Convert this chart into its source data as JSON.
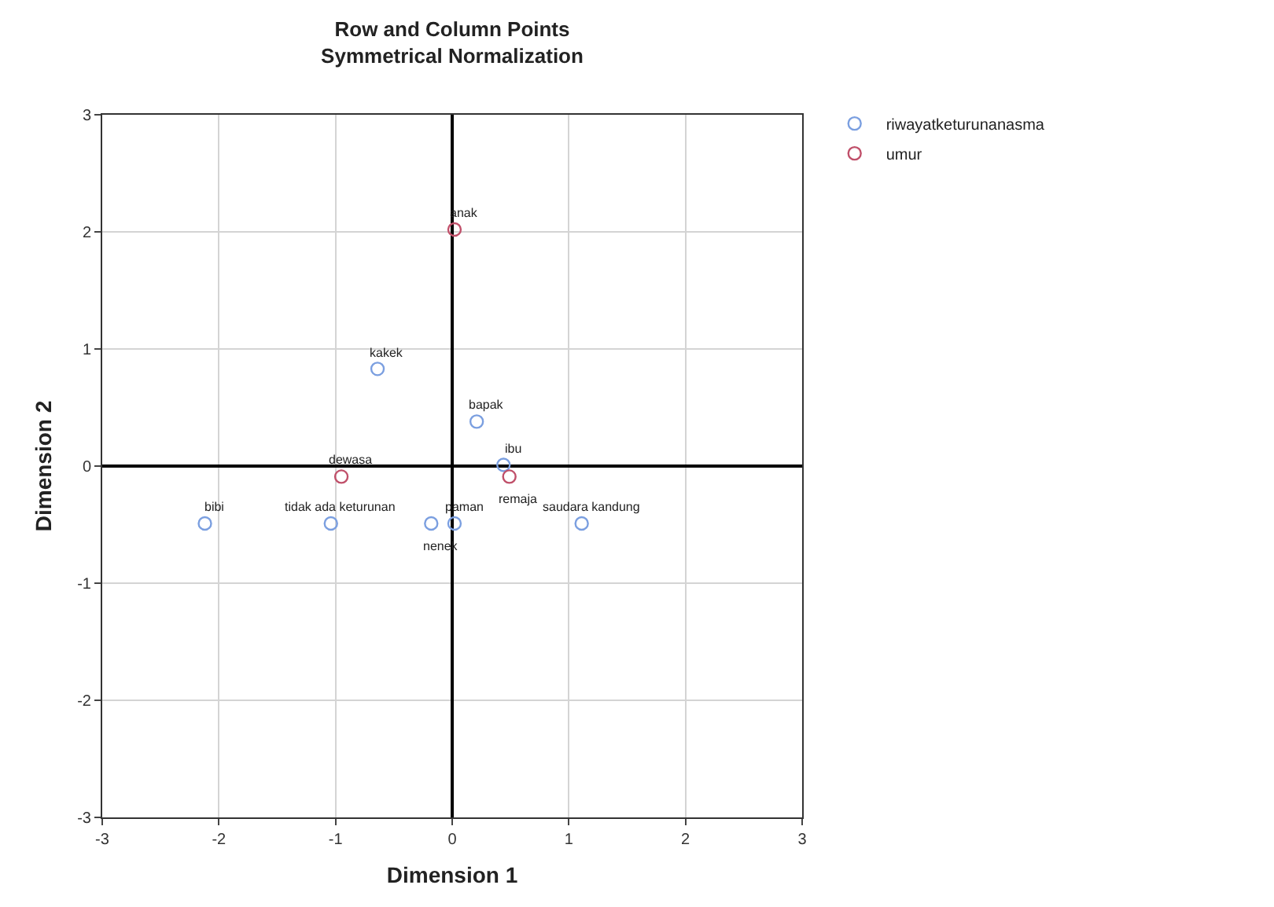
{
  "chart_data": {
    "type": "scatter",
    "title": "Row and Column Points",
    "subtitle": "Symmetrical Normalization",
    "xlabel": "Dimension 1",
    "ylabel": "Dimension 2",
    "series": [
      {
        "name": "riwayatketurunanasma",
        "color": "#7b9fe0",
        "x": [
          -0.64,
          0.21,
          0.44,
          -2.12,
          -1.04,
          -0.18,
          0.02,
          1.11
        ],
        "values": [
          0.83,
          0.38,
          0.01,
          -0.49,
          -0.49,
          -0.49,
          -0.49,
          -0.49
        ]
      },
      {
        "name": "umur",
        "color": "#c0506a",
        "x": [
          0.02,
          -0.95,
          0.49
        ],
        "values": [
          2.02,
          -0.09,
          -0.09
        ]
      }
    ],
    "annotations": [
      {
        "text": "kakek",
        "x": -0.64,
        "y": 0.83
      },
      {
        "text": "bapak",
        "x": 0.21,
        "y": 0.38
      },
      {
        "text": "ibu",
        "x": 0.44,
        "y": 0.01
      },
      {
        "text": "bibi",
        "x": -2.12,
        "y": -0.49
      },
      {
        "text": "tidak ada keturunan",
        "x": -1.04,
        "y": -0.49
      },
      {
        "text": "paman",
        "x": 0.02,
        "y": -0.49
      },
      {
        "text": "nenek",
        "x": -0.18,
        "y": -0.49
      },
      {
        "text": "saudara kandung",
        "x": 1.11,
        "y": -0.49
      },
      {
        "text": "anak",
        "x": 0.02,
        "y": 2.02
      },
      {
        "text": "dewasa",
        "x": -0.95,
        "y": -0.09
      },
      {
        "text": "remaja",
        "x": 0.49,
        "y": -0.09
      }
    ],
    "xlim": [
      -3,
      3
    ],
    "xticks": [
      -3,
      -2,
      -1,
      0,
      1,
      2,
      3
    ],
    "ylim": [
      -3,
      3
    ],
    "yticks": [
      -3,
      -2,
      -1,
      0,
      1,
      2,
      3
    ],
    "grid": true,
    "legend": "top right",
    "marker": "circle"
  }
}
